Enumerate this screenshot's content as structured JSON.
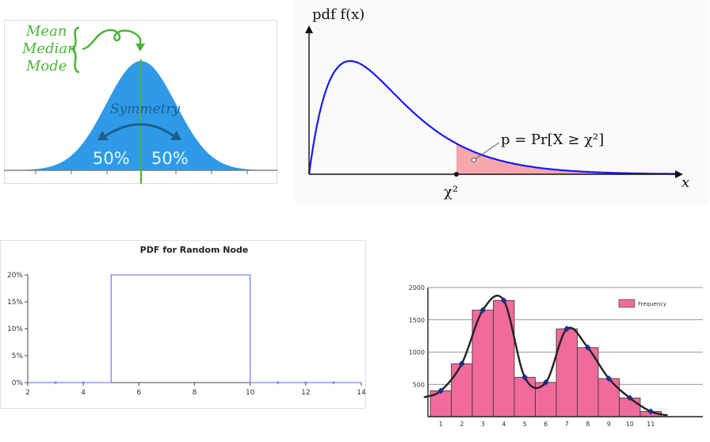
{
  "colors": {
    "bell_fill": "#2f9be8",
    "bell_fill_light": "#6cc0f5",
    "bell_axis": "#6b6b6b",
    "green": "#49b534",
    "arrow_blue": "#1d5f8e",
    "pdf_curve": "#1a1aef",
    "pdf_tail": "#f5a7ab",
    "uniform_line": "#7f7fff",
    "hist_bar": "#f06b9c",
    "hist_curve": "#222222",
    "hist_marker": "#1c2f8a"
  },
  "chart_data": [
    {
      "type": "area",
      "title": "",
      "annotations": {
        "center_labels": [
          "Mean",
          "Median",
          "Mode"
        ],
        "symmetry": "Symmetry",
        "left_pct": "50%",
        "right_pct": "50%"
      }
    },
    {
      "type": "area",
      "ylabel": "pdf f(x)",
      "xlabel": "x",
      "critical_label": "χ²",
      "tail_label": "p = Pr[X ≥ χ²]",
      "shaded_region": "right-tail"
    },
    {
      "type": "line",
      "title": "PDF for Random Node",
      "x_ticks": [
        2,
        4,
        6,
        8,
        10,
        12,
        14
      ],
      "y_ticks": [
        "0%",
        "5%",
        "10%",
        "15%",
        "20%"
      ],
      "xlim": [
        2,
        14
      ],
      "ylim": [
        0,
        20
      ],
      "x": [
        2,
        5,
        5,
        10,
        10,
        14
      ],
      "y": [
        0,
        0,
        20,
        20,
        0,
        0
      ],
      "grid": false
    },
    {
      "type": "bar",
      "categories": [
        1,
        2,
        3,
        4,
        5,
        6,
        7,
        8,
        9,
        10,
        11
      ],
      "values": [
        400,
        820,
        1650,
        1800,
        610,
        530,
        1360,
        1070,
        590,
        290,
        80
      ],
      "y_ticks": [
        500,
        1000,
        1500,
        2000
      ],
      "ylim": [
        0,
        2000
      ],
      "legend": "Frequency",
      "legend_position": "top-right",
      "curve": true,
      "grid": true
    }
  ]
}
